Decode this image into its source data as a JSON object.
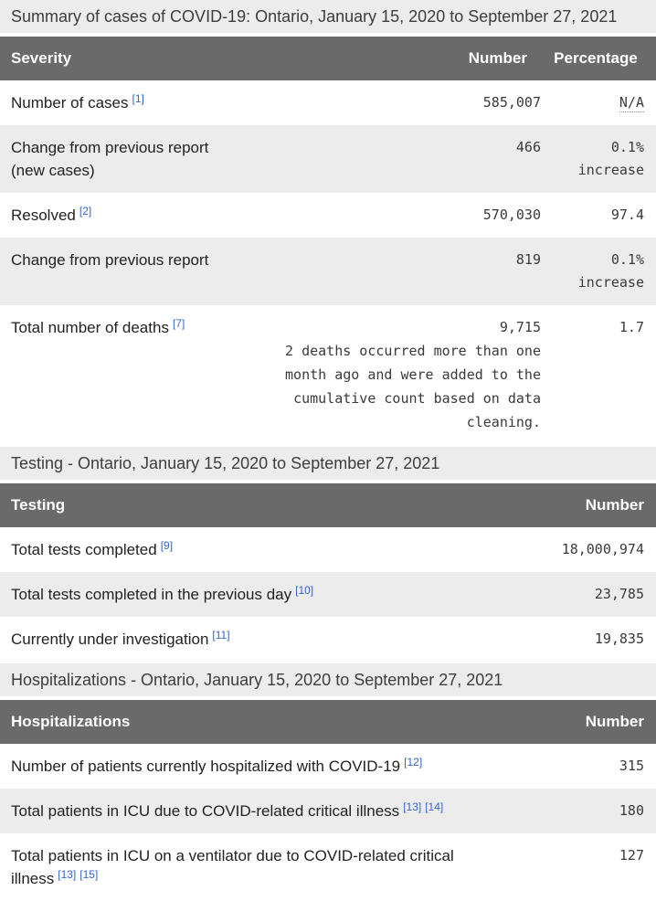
{
  "colors": {
    "header_bg": "#6a6a6a",
    "header_text": "#ffffff",
    "band_bg": "#ececec",
    "row_alt_bg": "#ececec",
    "title_text": "#3d3d3d",
    "label_text": "#222222",
    "value_text": "#3a3a3a",
    "link": "#3366cc"
  },
  "tables": [
    {
      "key": "summary",
      "title": "Summary of cases of COVID-19: Ontario, January 15, 2020 to September 27, 2021",
      "columns": [
        "Severity",
        "Number",
        "Percentage"
      ],
      "rows": [
        {
          "label_lines": [
            "Number of cases"
          ],
          "refs": [
            "[1]"
          ],
          "number": "585,007",
          "percentage_lines": [
            "N/A"
          ],
          "na": true
        },
        {
          "label_lines": [
            "Change from previous report",
            "(new cases)"
          ],
          "refs": [],
          "number": "466",
          "percentage_lines": [
            "0.1%",
            "increase"
          ]
        },
        {
          "label_lines": [
            "Resolved"
          ],
          "refs": [
            "[2]"
          ],
          "number": "570,030",
          "percentage_lines": [
            "97.4"
          ]
        },
        {
          "label_lines": [
            "Change from previous report"
          ],
          "refs": [],
          "number": "819",
          "percentage_lines": [
            "0.1%",
            "increase"
          ]
        },
        {
          "label_lines": [
            "Total number of deaths"
          ],
          "refs": [
            "[7]"
          ],
          "number": "9,715",
          "note_lines": [
            "2 deaths occurred more than one",
            "month ago and were added to the",
            "cumulative count based on data",
            "cleaning."
          ],
          "percentage_lines": [
            "1.7"
          ]
        }
      ]
    },
    {
      "key": "testing",
      "title": "Testing - Ontario, January 15, 2020 to September 27, 2021",
      "columns": [
        "Testing",
        "Number"
      ],
      "rows": [
        {
          "label_lines": [
            "Total tests completed"
          ],
          "refs": [
            "[9]"
          ],
          "number": "18,000,974"
        },
        {
          "label_lines": [
            "Total tests completed in the previous day"
          ],
          "refs": [
            "[10]"
          ],
          "number": "23,785"
        },
        {
          "label_lines": [
            "Currently under investigation"
          ],
          "refs": [
            "[11]"
          ],
          "number": "19,835"
        }
      ]
    },
    {
      "key": "hospitalizations",
      "title": "Hospitalizations - Ontario, January 15, 2020 to September 27, 2021",
      "columns": [
        "Hospitalizations",
        "Number"
      ],
      "rows": [
        {
          "label_lines": [
            "Number of patients currently hospitalized with COVID-19"
          ],
          "refs": [
            "[12]"
          ],
          "number": "315"
        },
        {
          "label_lines": [
            "Total patients in ICU due to COVID-related critical illness"
          ],
          "refs": [
            "[13]",
            "[14]"
          ],
          "number": "180"
        },
        {
          "label_lines": [
            "Total patients in ICU on a ventilator due to COVID-related critical",
            "illness"
          ],
          "refs": [
            "[13]",
            "[15]"
          ],
          "number": "127"
        }
      ]
    }
  ]
}
